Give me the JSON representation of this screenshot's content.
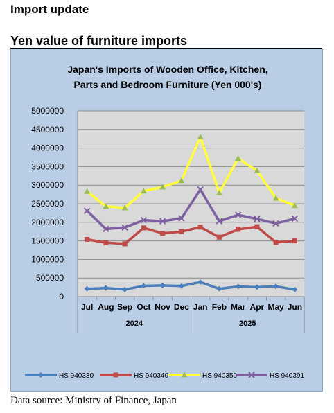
{
  "page": {
    "section_title": "Import update",
    "subtitle": "Yen value of furniture imports",
    "source": "Data source: Ministry of Finance, Japan"
  },
  "chart_data": {
    "type": "line",
    "title_lines": [
      "Japan's Imports of  Wooden  Office, Kitchen,",
      "Parts and Bedroom Furniture (Yen 000's)"
    ],
    "categories": [
      "Jul",
      "Aug",
      "Sep",
      "Oct",
      "Nov",
      "Dec",
      "Jan",
      "Feb",
      "Mar",
      "Apr",
      "May",
      "Jun"
    ],
    "groups": [
      {
        "label": "2024",
        "from": 0,
        "to": 5
      },
      {
        "label": "2025",
        "from": 6,
        "to": 11
      }
    ],
    "ylim": [
      0,
      5000000
    ],
    "yticks": [
      "0",
      "500000",
      "1000000",
      "1500000",
      "2000000",
      "2500000",
      "3000000",
      "3500000",
      "4000000",
      "4500000",
      "5000000"
    ],
    "grid": true,
    "legend_position": "bottom",
    "series": [
      {
        "name": "HS 940330",
        "color": "#4a7ebb",
        "marker": "diamond",
        "values": [
          210000,
          230000,
          190000,
          290000,
          300000,
          285000,
          390000,
          210000,
          270000,
          255000,
          275000,
          190000
        ]
      },
      {
        "name": "HS 940340",
        "color": "#be4b48",
        "marker": "square",
        "values": [
          1540000,
          1450000,
          1420000,
          1850000,
          1700000,
          1750000,
          1870000,
          1600000,
          1810000,
          1880000,
          1460000,
          1500000
        ]
      },
      {
        "name": "HS 940350",
        "color": "#ffff33",
        "marker": "triangle",
        "marker_color": "#9bbb59",
        "values": [
          2830000,
          2430000,
          2390000,
          2840000,
          2950000,
          3120000,
          4300000,
          2790000,
          3720000,
          3390000,
          2650000,
          2450000
        ]
      },
      {
        "name": "HS 940391",
        "color": "#7d60a0",
        "marker": "x",
        "values": [
          2310000,
          1820000,
          1860000,
          2060000,
          2030000,
          2110000,
          2880000,
          2030000,
          2200000,
          2090000,
          1970000,
          2100000
        ]
      }
    ]
  }
}
